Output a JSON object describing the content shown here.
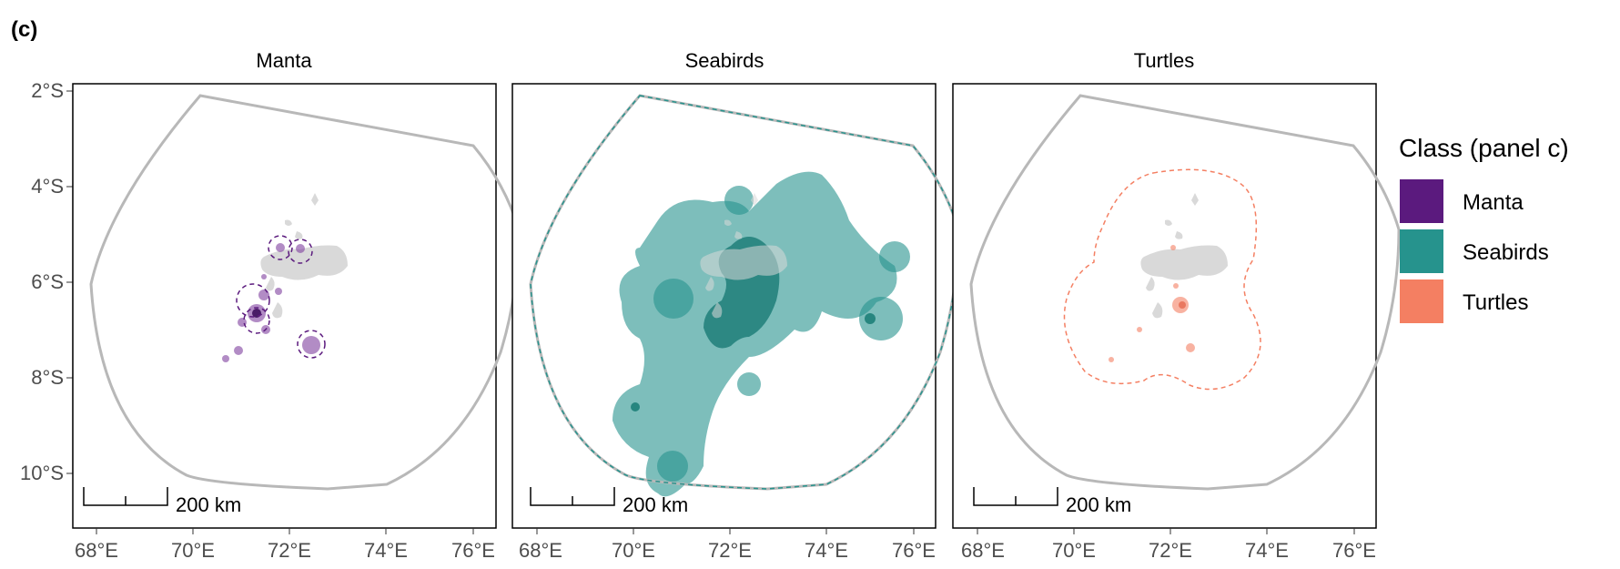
{
  "figure": {
    "panel_label": "(c)"
  },
  "panels": [
    {
      "title": "Manta",
      "scale_label": "200 km",
      "color": "#5B1A7E"
    },
    {
      "title": "Seabirds",
      "scale_label": "200 km",
      "color": "#26938D"
    },
    {
      "title": "Turtles",
      "scale_label": "200 km",
      "color": "#F47F62"
    }
  ],
  "axes": {
    "y_ticks": [
      "2°S",
      "4°S",
      "6°S",
      "8°S",
      "10°S"
    ],
    "x_ticks": [
      "68°E",
      "70°E",
      "72°E",
      "74°E",
      "76°E"
    ]
  },
  "legend": {
    "title": "Class (panel c)",
    "items": [
      {
        "label": "Manta",
        "color": "#5B1A7E"
      },
      {
        "label": "Seabirds",
        "color": "#26938D"
      },
      {
        "label": "Turtles",
        "color": "#F47F62"
      }
    ]
  },
  "colors": {
    "boundary": "#B8B8B8",
    "islands": "#D9D9D9",
    "panel_border": "#000000"
  }
}
